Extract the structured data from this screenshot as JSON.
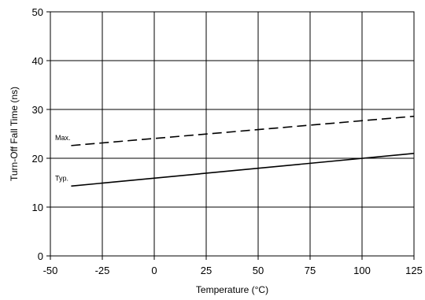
{
  "chart_data": {
    "type": "line",
    "title": "",
    "xlabel": "Temperature (°C)",
    "ylabel": "Turn-Off Fall Time (ns)",
    "xlim": [
      -50,
      125
    ],
    "ylim": [
      0,
      50
    ],
    "x_ticks": [
      -50,
      -25,
      0,
      25,
      50,
      75,
      100,
      125
    ],
    "y_ticks": [
      0,
      10,
      20,
      30,
      40,
      50
    ],
    "grid": true,
    "series": [
      {
        "name": "Max.",
        "style": "dashed",
        "x": [
          -40,
          125
        ],
        "y": [
          22.6,
          28.6
        ]
      },
      {
        "name": "Typ.",
        "style": "solid",
        "x": [
          -40,
          125
        ],
        "y": [
          14.3,
          21.0
        ]
      }
    ]
  }
}
